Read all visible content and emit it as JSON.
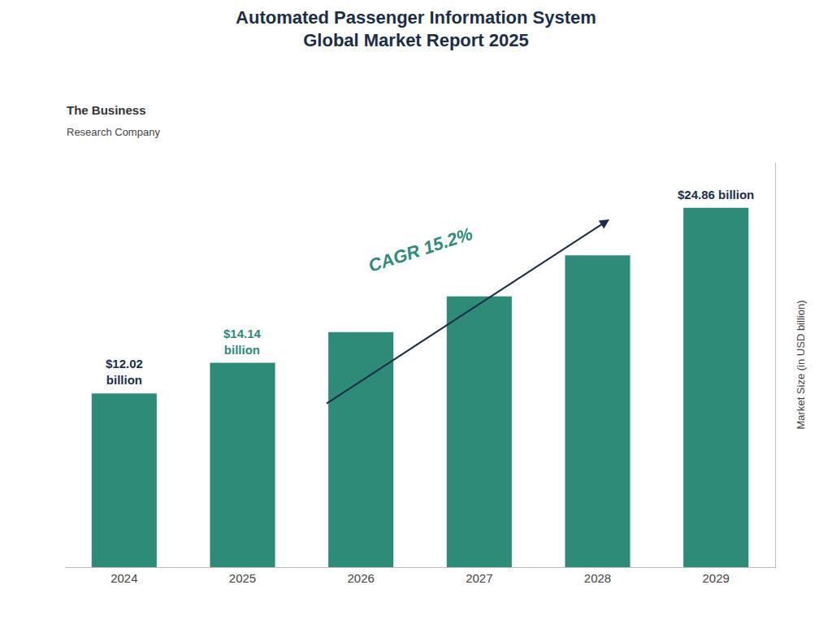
{
  "chart_data": {
    "type": "bar",
    "title": "Automated Passenger Information System\nGlobal Market Report 2025",
    "categories": [
      "2024",
      "2025",
      "2026",
      "2027",
      "2028",
      "2029"
    ],
    "values": [
      12.02,
      14.14,
      16.27,
      18.74,
      21.57,
      24.86
    ],
    "color": "#2d8b78",
    "ylabel": "Market Size (in USD billion)",
    "ylim": [
      0,
      28
    ],
    "tick_labels": "x",
    "grid": false,
    "annotations": [
      {
        "text": "$12.02\nbillion",
        "color": "#1a2e4a",
        "category": "2024"
      },
      {
        "text": "$14.14\nbillion",
        "color": "#2d8b78",
        "category": "2025"
      },
      {
        "text": "$24.86 billion",
        "color": "#1a2e4a",
        "category": "2029"
      },
      {
        "text": "CAGR 15.2%",
        "color": "#2d8b78",
        "category": [
          "2026",
          "2028"
        ]
      },
      {
        "text": "The Business",
        "color": "#333333"
      },
      {
        "text": "Research Company",
        "color": "#444444"
      }
    ]
  }
}
